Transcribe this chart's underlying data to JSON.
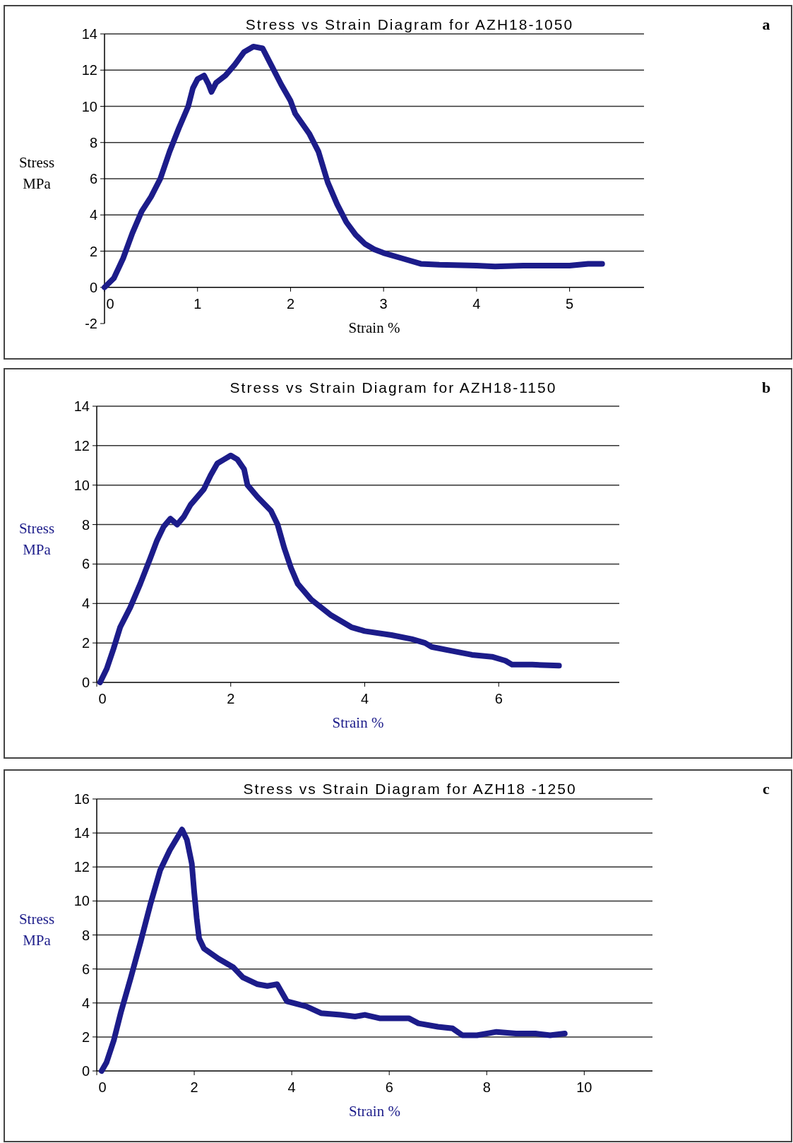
{
  "chart_data": [
    {
      "type": "line",
      "title": "Stress vs Strain Diagram for AZH18-1050",
      "xlabel": "Strain %",
      "ylabel": "Stress MPa",
      "annotations": [
        "a"
      ],
      "xlim": [
        0,
        5.8
      ],
      "xticks": [
        0,
        1,
        2,
        3,
        4,
        5
      ],
      "ylim": [
        -2,
        14
      ],
      "yticks": [
        -2,
        0,
        2,
        4,
        6,
        8,
        10,
        12,
        14
      ],
      "grid": "y",
      "marker": "none",
      "line_style": "solid",
      "series": [
        {
          "color": "#1c1c8a",
          "x": [
            0,
            0.1,
            0.2,
            0.3,
            0.4,
            0.5,
            0.6,
            0.7,
            0.8,
            0.9,
            0.95,
            1.0,
            1.07,
            1.12,
            1.15,
            1.2,
            1.3,
            1.4,
            1.5,
            1.6,
            1.7,
            1.8,
            1.9,
            2.0,
            2.05,
            2.2,
            2.3,
            2.4,
            2.5,
            2.6,
            2.7,
            2.8,
            2.9,
            3.0,
            3.2,
            3.4,
            3.6,
            4.0,
            4.2,
            4.5,
            5.0,
            5.2,
            5.35
          ],
          "values": [
            0,
            0.5,
            1.6,
            3,
            4.2,
            5,
            6,
            7.5,
            8.8,
            10,
            11,
            11.5,
            11.7,
            11.2,
            10.8,
            11.3,
            11.7,
            12.3,
            13,
            13.3,
            13.2,
            12.2,
            11.2,
            10.3,
            9.6,
            8.5,
            7.5,
            5.8,
            4.6,
            3.6,
            2.9,
            2.4,
            2.1,
            1.9,
            1.6,
            1.3,
            1.25,
            1.2,
            1.15,
            1.2,
            1.2,
            1.3,
            1.3
          ]
        }
      ]
    },
    {
      "type": "line",
      "title": "Stress vs Strain Diagram for AZH18-1150",
      "xlabel": "Strain %",
      "ylabel": "Stress MPa",
      "annotations": [
        "b"
      ],
      "xlim": [
        0,
        7.8
      ],
      "xticks": [
        0,
        2,
        4,
        6
      ],
      "ylim": [
        0,
        14
      ],
      "yticks": [
        0,
        2,
        4,
        6,
        8,
        10,
        12,
        14
      ],
      "grid": "y",
      "marker": "none",
      "line_style": "solid",
      "series": [
        {
          "color": "#1c1c8a",
          "x": [
            0.05,
            0.15,
            0.25,
            0.35,
            0.5,
            0.65,
            0.8,
            0.9,
            1.0,
            1.1,
            1.2,
            1.3,
            1.4,
            1.6,
            1.7,
            1.8,
            1.9,
            2.0,
            2.1,
            2.2,
            2.25,
            2.4,
            2.6,
            2.7,
            2.8,
            2.9,
            3.0,
            3.2,
            3.5,
            3.8,
            4.0,
            4.4,
            4.7,
            4.9,
            5.0,
            5.3,
            5.6,
            5.9,
            6.1,
            6.2,
            6.5,
            6.9
          ],
          "values": [
            0,
            0.7,
            1.7,
            2.8,
            3.8,
            5,
            6.3,
            7.2,
            7.9,
            8.3,
            8.0,
            8.4,
            9,
            9.8,
            10.5,
            11.1,
            11.3,
            11.5,
            11.3,
            10.8,
            10.0,
            9.4,
            8.7,
            8.0,
            6.8,
            5.8,
            5.0,
            4.2,
            3.4,
            2.8,
            2.6,
            2.4,
            2.2,
            2.0,
            1.8,
            1.6,
            1.4,
            1.3,
            1.1,
            0.9,
            0.9,
            0.85
          ]
        }
      ]
    },
    {
      "type": "line",
      "title": "Stress vs Strain Diagram for AZH18 -1250",
      "xlabel": "Strain %",
      "ylabel": "Stress MPa",
      "annotations": [
        "c"
      ],
      "xlim": [
        0,
        11.4
      ],
      "xticks": [
        0,
        2,
        4,
        6,
        8,
        10
      ],
      "ylim": [
        0,
        16
      ],
      "yticks": [
        0,
        2,
        4,
        6,
        8,
        10,
        12,
        14,
        16
      ],
      "grid": "y",
      "marker": "none",
      "line_style": "solid",
      "series": [
        {
          "color": "#1c1c8a",
          "x": [
            0.1,
            0.2,
            0.35,
            0.5,
            0.7,
            0.9,
            1.1,
            1.3,
            1.5,
            1.75,
            1.85,
            1.95,
            2.0,
            2.05,
            2.1,
            2.2,
            2.5,
            2.8,
            3.0,
            3.3,
            3.5,
            3.7,
            3.8,
            3.9,
            4.3,
            4.6,
            5.0,
            5.3,
            5.5,
            5.8,
            6.2,
            6.4,
            6.6,
            7.0,
            7.3,
            7.5,
            7.8,
            8.2,
            8.6,
            9.0,
            9.3,
            9.6
          ],
          "values": [
            0,
            0.5,
            1.8,
            3.5,
            5.5,
            7.6,
            9.8,
            11.8,
            13,
            14.2,
            13.6,
            12.2,
            10.5,
            9,
            7.8,
            7.2,
            6.6,
            6.1,
            5.5,
            5.1,
            5.0,
            5.1,
            4.6,
            4.1,
            3.8,
            3.4,
            3.3,
            3.2,
            3.3,
            3.1,
            3.1,
            3.1,
            2.8,
            2.6,
            2.5,
            2.1,
            2.1,
            2.3,
            2.2,
            2.2,
            2.1,
            2.2
          ]
        }
      ]
    }
  ]
}
